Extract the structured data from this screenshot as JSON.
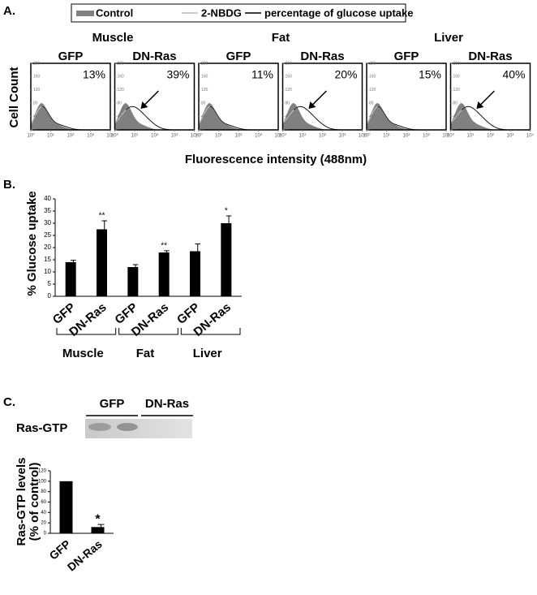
{
  "panel_labels": [
    "A.",
    "B.",
    "C."
  ],
  "chart_data": [
    {
      "type": "flow-histograms",
      "legend": [
        {
          "name": "Control",
          "color": "#808080"
        },
        {
          "name": "2-NBDG",
          "color": "#bdbdbd"
        },
        {
          "name": "percentage of glucose uptake",
          "color": "#000000"
        }
      ],
      "groups": [
        {
          "name": "Muscle",
          "panels": [
            {
              "name": "GFP",
              "annotation": "13%"
            },
            {
              "name": "DN-Ras",
              "annotation": "39%"
            }
          ]
        },
        {
          "name": "Fat",
          "panels": [
            {
              "name": "GFP",
              "annotation": "11%"
            },
            {
              "name": "DN-Ras",
              "annotation": "20%"
            }
          ]
        },
        {
          "name": "Liver",
          "panels": [
            {
              "name": "GFP",
              "annotation": "15%"
            },
            {
              "name": "DN-Ras",
              "annotation": "40%"
            }
          ]
        }
      ],
      "ylabel": "Cell Count",
      "xlabel": "Fluorescence intensity (488nm)",
      "xscale": "log",
      "xlim": [
        1,
        10000
      ],
      "xticks": [
        {
          "value": 1,
          "label": "10⁰"
        },
        {
          "value": 10,
          "label": "10¹"
        },
        {
          "value": 100,
          "label": "10²"
        },
        {
          "value": 1000,
          "label": "10³"
        },
        {
          "value": 10000,
          "label": "10⁴"
        }
      ],
      "ylim": [
        0,
        200
      ],
      "yticks": [
        0,
        40,
        80,
        120,
        160,
        200
      ]
    },
    {
      "type": "bar",
      "ylabel": "% Glucose uptake",
      "categories": [
        "GFP",
        "DN-Ras",
        "GFP",
        "DN-Ras",
        "GFP",
        "DN-Ras"
      ],
      "groups": [
        "Muscle",
        "Fat",
        "Liver"
      ],
      "values": [
        14,
        27.5,
        12,
        18,
        18.5,
        30
      ],
      "errors": [
        0.8,
        3.5,
        1,
        0.7,
        3,
        3
      ],
      "significance": [
        null,
        "**",
        null,
        "**",
        null,
        "*"
      ],
      "color": "#000000",
      "ylim": [
        0,
        40
      ],
      "yticks": [
        0,
        5,
        10,
        15,
        20,
        25,
        30,
        35,
        40
      ]
    },
    {
      "type": "bar",
      "ylabel": [
        "Ras-GTP levels",
        "(% of control)"
      ],
      "blot": {
        "label": "Ras-GTP",
        "lanes": [
          "GFP",
          "DN-Ras"
        ]
      },
      "categories": [
        "GFP",
        "DN-Ras"
      ],
      "values": [
        100,
        12
      ],
      "errors": [
        0,
        5
      ],
      "significance": [
        null,
        "*"
      ],
      "color": "#000000",
      "ylim": [
        0,
        120
      ],
      "yticks": [
        0,
        20,
        40,
        60,
        80,
        100,
        120
      ]
    }
  ]
}
